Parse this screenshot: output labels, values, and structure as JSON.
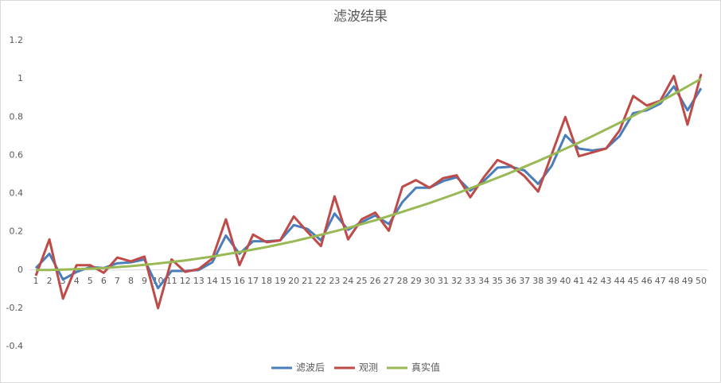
{
  "chart_data": {
    "type": "line",
    "title": "滤波结果",
    "categories": [
      "1",
      "2",
      "3",
      "4",
      "5",
      "6",
      "7",
      "8",
      "9",
      "10",
      "11",
      "12",
      "13",
      "14",
      "15",
      "16",
      "17",
      "18",
      "19",
      "20",
      "21",
      "22",
      "23",
      "24",
      "25",
      "26",
      "27",
      "28",
      "29",
      "30",
      "31",
      "32",
      "33",
      "34",
      "35",
      "36",
      "37",
      "38",
      "39",
      "40",
      "41",
      "42",
      "43",
      "44",
      "45",
      "46",
      "47",
      "48",
      "49",
      "50"
    ],
    "series": [
      {
        "name": "滤波后",
        "color": "#4a7ebb",
        "values": [
          0.01,
          0.085,
          -0.05,
          -0.01,
          0.015,
          0.01,
          0.035,
          0.04,
          0.055,
          -0.095,
          -0.005,
          -0.005,
          0,
          0.04,
          0.18,
          0.085,
          0.15,
          0.15,
          0.155,
          0.235,
          0.215,
          0.155,
          0.295,
          0.21,
          0.25,
          0.285,
          0.24,
          0.355,
          0.43,
          0.43,
          0.465,
          0.485,
          0.415,
          0.465,
          0.535,
          0.54,
          0.52,
          0.45,
          0.545,
          0.705,
          0.635,
          0.625,
          0.635,
          0.7,
          0.82,
          0.835,
          0.87,
          0.96,
          0.835,
          0.95
        ]
      },
      {
        "name": "观测",
        "color": "#be4b48",
        "values": [
          -0.03,
          0.16,
          -0.15,
          0.025,
          0.025,
          -0.015,
          0.065,
          0.045,
          0.07,
          -0.2,
          0.055,
          -0.01,
          0.005,
          0.06,
          0.265,
          0.025,
          0.185,
          0.145,
          0.155,
          0.28,
          0.2,
          0.125,
          0.385,
          0.16,
          0.265,
          0.3,
          0.205,
          0.435,
          0.47,
          0.43,
          0.48,
          0.495,
          0.38,
          0.485,
          0.575,
          0.545,
          0.49,
          0.41,
          0.605,
          0.8,
          0.595,
          0.615,
          0.635,
          0.73,
          0.91,
          0.86,
          0.885,
          1.015,
          0.76,
          1.025
        ]
      },
      {
        "name": "真实值",
        "color": "#98b954",
        "values": [
          0,
          0,
          0.002,
          0.004,
          0.007,
          0.01,
          0.015,
          0.02,
          0.027,
          0.034,
          0.042,
          0.05,
          0.06,
          0.07,
          0.082,
          0.094,
          0.107,
          0.12,
          0.135,
          0.15,
          0.167,
          0.184,
          0.202,
          0.22,
          0.24,
          0.26,
          0.282,
          0.304,
          0.327,
          0.35,
          0.375,
          0.4,
          0.427,
          0.454,
          0.482,
          0.51,
          0.54,
          0.57,
          0.601,
          0.634,
          0.666,
          0.7,
          0.735,
          0.77,
          0.806,
          0.843,
          0.881,
          0.92,
          0.96,
          1
        ]
      }
    ],
    "ylim": [
      -0.4,
      1.2
    ],
    "yticks": [
      -0.4,
      -0.2,
      0,
      0.2,
      0.4,
      0.6,
      0.8,
      1,
      1.2
    ],
    "grid": false,
    "legend": "bottom"
  }
}
